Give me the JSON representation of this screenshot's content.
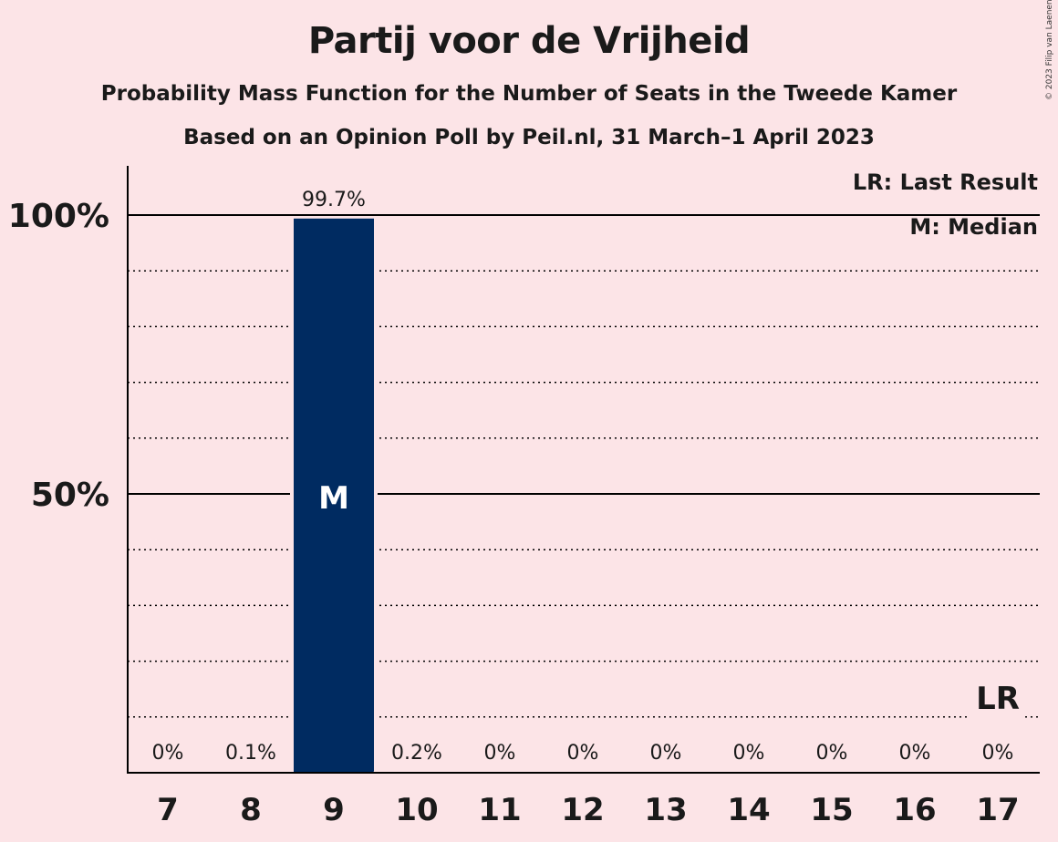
{
  "title": "Partij voor de Vrijheid",
  "subtitle1": "Probability Mass Function for the Number of Seats in the Tweede Kamer",
  "subtitle2": "Based on an Opinion Poll by Peil.nl, 31 March–1 April 2023",
  "copyright": "© 2023 Filip van Laenen",
  "legend": {
    "lr": "LR: Last Result",
    "m": "M: Median"
  },
  "colors": {
    "background": "#FCE4E7",
    "bar": "#002B61"
  },
  "chart_data": {
    "type": "bar",
    "categories": [
      "7",
      "8",
      "9",
      "10",
      "11",
      "12",
      "13",
      "14",
      "15",
      "16",
      "17"
    ],
    "values": [
      0,
      0.1,
      99.7,
      0.2,
      0,
      0,
      0,
      0,
      0,
      0,
      0
    ],
    "value_labels": [
      "0%",
      "0.1%",
      "99.7%",
      "0.2%",
      "0%",
      "0%",
      "0%",
      "0%",
      "0%",
      "0%",
      "0%"
    ],
    "y_tick_labels": [
      {
        "value": 50,
        "label": "50%"
      },
      {
        "value": 100,
        "label": "100%"
      }
    ],
    "ylim": [
      0,
      110
    ],
    "grid": true,
    "legend_position": "top-right",
    "median": {
      "category": "9",
      "label": "M"
    },
    "last_result": {
      "category": "17",
      "label": "LR"
    }
  }
}
